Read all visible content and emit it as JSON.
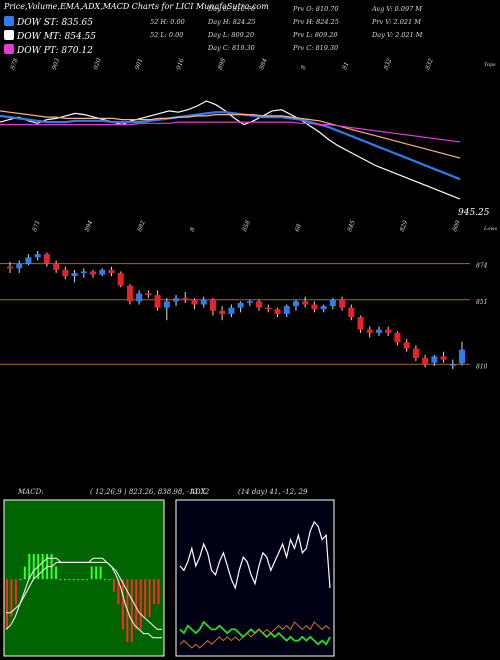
{
  "title": "Price,Volume,EMA,ADX,MACD Charts for LICI MunafaSutra.com",
  "legend": [
    {
      "label": "DOW ST: 835.65",
      "color": "#2f7cf0"
    },
    {
      "label": "DOW MT: 854.55",
      "color": "#ffffff"
    },
    {
      "label": "DOW PT: 870.12",
      "color": "#e23bd6"
    }
  ],
  "stats": {
    "day_open": "Day O: 810.70",
    "day_high": "Day H: 824.25",
    "day_low": "Day L: 809.20",
    "day_close": "Day C: 819.30",
    "w52_high": "52 H: 0.00",
    "w52_low": "52 L: 0.00",
    "prev_open": "Prv O: 810.70",
    "prev_high": "Prv H: 824.25",
    "prev_low": "Prv L: 809.20",
    "prev_close": "Prv C: 819.30",
    "avg_vol": "Avg V: 0.097 M",
    "prev_vol": "Prv V: 2.021 M",
    "day_vol": "Day V: 2.021 M"
  },
  "chart_data": [
    {
      "type": "line",
      "name": "price-ema-panel",
      "side_labels": {
        "top": "Tops",
        "bottom": "Lows"
      },
      "last_value_label": "945.25",
      "top_labels": [
        "878",
        "903",
        "920",
        "901",
        "916",
        "898",
        "884",
        "8",
        "81",
        "832",
        "832"
      ],
      "bottom_labels": [
        "871",
        "894",
        "882",
        "8",
        "858",
        "68",
        "845",
        "829",
        "809"
      ],
      "series": [
        {
          "color": "#ffffff",
          "values": [
            880,
            882,
            884,
            881,
            879,
            882,
            883,
            885,
            887,
            886,
            884,
            882,
            880,
            878,
            881,
            883,
            885,
            887,
            889,
            888,
            890,
            893,
            897,
            894,
            889,
            883,
            878,
            881,
            885,
            889,
            890,
            886,
            882,
            877,
            872,
            866,
            861,
            857,
            853,
            849,
            845,
            842,
            839,
            836,
            833,
            830,
            827,
            824,
            821,
            818
          ]
        },
        {
          "color": "#2f7cf0",
          "values": [
            885,
            884,
            883,
            882,
            881,
            880,
            880,
            880,
            881,
            881,
            881,
            881,
            880,
            880,
            880,
            880,
            881,
            882,
            883,
            884,
            885,
            886,
            887,
            888,
            888,
            887,
            886,
            885,
            884,
            884,
            884,
            883,
            882,
            880,
            878,
            876,
            873,
            870,
            867,
            864,
            861,
            858,
            855,
            852,
            849,
            846,
            843,
            840,
            837,
            834
          ]
        },
        {
          "color": "#ffb080",
          "values": [
            889,
            888,
            887,
            886,
            885,
            884,
            884,
            883,
            883,
            883,
            883,
            883,
            883,
            882,
            882,
            882,
            882,
            883,
            883,
            884,
            884,
            885,
            885,
            886,
            886,
            886,
            886,
            886,
            885,
            885,
            885,
            884,
            883,
            882,
            881,
            879,
            877,
            875,
            873,
            871,
            869,
            867,
            865,
            863,
            861,
            859,
            857,
            855,
            853,
            851
          ]
        },
        {
          "color": "#e23bd6",
          "values": [
            878,
            878,
            878,
            878,
            878,
            878,
            878,
            878,
            878,
            878,
            878,
            878,
            878,
            878,
            878,
            879,
            879,
            879,
            879,
            880,
            880,
            880,
            880,
            880,
            880,
            880,
            880,
            880,
            880,
            880,
            880,
            880,
            879,
            879,
            878,
            878,
            877,
            876,
            875,
            874,
            873,
            872,
            871,
            870,
            869,
            868,
            867,
            866,
            865,
            864
          ]
        }
      ]
    },
    {
      "type": "candlestick",
      "name": "candle-panel",
      "levels": [
        {
          "value": 874,
          "label": "874"
        },
        {
          "value": 851,
          "label": "851"
        },
        {
          "value": 810,
          "label": "810"
        }
      ],
      "candles": [
        {
          "o": 872,
          "h": 875,
          "l": 868,
          "c": 871
        },
        {
          "o": 871,
          "h": 876,
          "l": 868,
          "c": 874
        },
        {
          "o": 874,
          "h": 880,
          "l": 873,
          "c": 878
        },
        {
          "o": 878,
          "h": 882,
          "l": 876,
          "c": 880
        },
        {
          "o": 880,
          "h": 881,
          "l": 872,
          "c": 874
        },
        {
          "o": 874,
          "h": 876,
          "l": 868,
          "c": 870
        },
        {
          "o": 870,
          "h": 872,
          "l": 864,
          "c": 866
        },
        {
          "o": 866,
          "h": 870,
          "l": 862,
          "c": 868
        },
        {
          "o": 868,
          "h": 871,
          "l": 865,
          "c": 869
        },
        {
          "o": 869,
          "h": 870,
          "l": 865,
          "c": 867
        },
        {
          "o": 867,
          "h": 871,
          "l": 866,
          "c": 870
        },
        {
          "o": 870,
          "h": 872,
          "l": 866,
          "c": 868
        },
        {
          "o": 868,
          "h": 869,
          "l": 859,
          "c": 860
        },
        {
          "o": 860,
          "h": 861,
          "l": 848,
          "c": 850
        },
        {
          "o": 850,
          "h": 857,
          "l": 848,
          "c": 855
        },
        {
          "o": 855,
          "h": 857,
          "l": 852,
          "c": 854
        },
        {
          "o": 854,
          "h": 857,
          "l": 844,
          "c": 846
        },
        {
          "o": 846,
          "h": 852,
          "l": 838,
          "c": 850
        },
        {
          "o": 850,
          "h": 854,
          "l": 847,
          "c": 852
        },
        {
          "o": 852,
          "h": 856,
          "l": 849,
          "c": 851
        },
        {
          "o": 851,
          "h": 852,
          "l": 845,
          "c": 848
        },
        {
          "o": 848,
          "h": 853,
          "l": 846,
          "c": 851
        },
        {
          "o": 851,
          "h": 852,
          "l": 841,
          "c": 844
        },
        {
          "o": 844,
          "h": 847,
          "l": 838,
          "c": 842
        },
        {
          "o": 842,
          "h": 848,
          "l": 840,
          "c": 846
        },
        {
          "o": 846,
          "h": 850,
          "l": 843,
          "c": 849
        },
        {
          "o": 849,
          "h": 851,
          "l": 847,
          "c": 850
        },
        {
          "o": 850,
          "h": 851,
          "l": 844,
          "c": 846
        },
        {
          "o": 846,
          "h": 848,
          "l": 843,
          "c": 845
        },
        {
          "o": 845,
          "h": 846,
          "l": 840,
          "c": 842
        },
        {
          "o": 842,
          "h": 848,
          "l": 840,
          "c": 847
        },
        {
          "o": 847,
          "h": 851,
          "l": 844,
          "c": 850
        },
        {
          "o": 850,
          "h": 853,
          "l": 846,
          "c": 848
        },
        {
          "o": 848,
          "h": 850,
          "l": 843,
          "c": 845
        },
        {
          "o": 845,
          "h": 848,
          "l": 843,
          "c": 847
        },
        {
          "o": 847,
          "h": 852,
          "l": 845,
          "c": 851
        },
        {
          "o": 851,
          "h": 853,
          "l": 844,
          "c": 846
        },
        {
          "o": 846,
          "h": 848,
          "l": 838,
          "c": 840
        },
        {
          "o": 840,
          "h": 841,
          "l": 830,
          "c": 832
        },
        {
          "o": 832,
          "h": 834,
          "l": 827,
          "c": 830
        },
        {
          "o": 830,
          "h": 834,
          "l": 828,
          "c": 832
        },
        {
          "o": 832,
          "h": 834,
          "l": 828,
          "c": 830
        },
        {
          "o": 830,
          "h": 831,
          "l": 822,
          "c": 824
        },
        {
          "o": 824,
          "h": 826,
          "l": 818,
          "c": 820
        },
        {
          "o": 820,
          "h": 822,
          "l": 812,
          "c": 814
        },
        {
          "o": 814,
          "h": 816,
          "l": 808,
          "c": 810
        },
        {
          "o": 811,
          "h": 816,
          "l": 809,
          "c": 815
        },
        {
          "o": 815,
          "h": 818,
          "l": 811,
          "c": 813
        },
        {
          "o": 810,
          "h": 813,
          "l": 807,
          "c": 810
        },
        {
          "o": 810.7,
          "h": 824.25,
          "l": 809.2,
          "c": 819.3
        }
      ]
    },
    {
      "type": "line",
      "name": "macd-panel",
      "title": "MACD:",
      "params": "( 12,26,9 ) 823.26, 838.98, -13.72",
      "series": [
        {
          "color": "#ffffff",
          "values": [
            -12,
            -11,
            -9,
            -6,
            -3,
            0,
            2,
            3,
            4,
            5,
            5,
            5,
            4,
            4,
            4,
            4,
            4,
            4,
            4,
            5,
            5,
            5,
            4,
            3,
            1,
            -2,
            -6,
            -9,
            -11,
            -12,
            -13,
            -13,
            -14,
            -14,
            -14
          ]
        },
        {
          "color": "#ffffff",
          "values": [
            -8,
            -8,
            -7,
            -6,
            -4,
            -2,
            0,
            1,
            2,
            3,
            3,
            4,
            4,
            4,
            4,
            4,
            4,
            4,
            4,
            4,
            4,
            4,
            4,
            3,
            2,
            0,
            -2,
            -4,
            -6,
            -8,
            -9,
            -10,
            -11,
            -12,
            -12
          ]
        }
      ],
      "histogram": [
        -4,
        -3,
        -2,
        0,
        1,
        2,
        2,
        2,
        2,
        2,
        2,
        1,
        0,
        0,
        0,
        0,
        0,
        0,
        0,
        1,
        1,
        1,
        0,
        0,
        -1,
        -2,
        -4,
        -5,
        -5,
        -4,
        -4,
        -3,
        -3,
        -2,
        -2
      ]
    },
    {
      "type": "line",
      "name": "adx-panel",
      "title": "ADX",
      "params": "(14 day) 41, -12, 29",
      "series": [
        {
          "color": "#ffffff",
          "values": [
            34,
            33,
            35,
            38,
            34,
            36,
            39,
            37,
            33,
            32,
            35,
            37,
            34,
            31,
            29,
            33,
            36,
            35,
            32,
            30,
            34,
            37,
            36,
            33,
            35,
            37,
            39,
            36,
            40,
            38,
            41,
            37,
            38,
            42,
            44,
            43,
            40,
            41,
            29
          ]
        },
        {
          "color": "#22dd22",
          "values": [
            12,
            11,
            13,
            12,
            11,
            12,
            14,
            13,
            12,
            12,
            13,
            12,
            11,
            12,
            12,
            11,
            10,
            11,
            12,
            11,
            12,
            11,
            10,
            11,
            10,
            11,
            10,
            9,
            10,
            9,
            9,
            10,
            9,
            10,
            9,
            8,
            9,
            8,
            10
          ]
        },
        {
          "color": "#cc7722",
          "values": [
            8,
            9,
            8,
            7,
            8,
            7,
            8,
            9,
            8,
            9,
            10,
            9,
            10,
            9,
            10,
            9,
            10,
            11,
            10,
            11,
            12,
            11,
            12,
            11,
            12,
            13,
            12,
            13,
            12,
            14,
            13,
            12,
            13,
            12,
            14,
            13,
            12,
            13,
            12
          ]
        }
      ]
    }
  ]
}
